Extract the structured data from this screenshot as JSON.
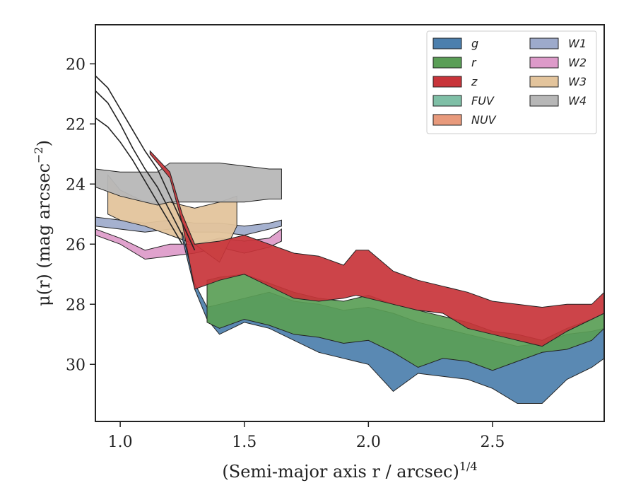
{
  "chart_data": {
    "type": "area",
    "xlabel": "(Semi-major axis r / arcsec)",
    "xlabel_sup": "1/4",
    "ylabel": "μ(r) (mag arcsec",
    "ylabel_sup": "−2",
    "ylabel_tail": ")",
    "xlim": [
      0.9,
      2.95
    ],
    "ylim": [
      31.9,
      18.7
    ],
    "y_inverted": true,
    "x_ticks": [
      1.0,
      1.5,
      2.0,
      2.5
    ],
    "x_tick_labels": [
      "1.0",
      "1.5",
      "2.0",
      "2.5"
    ],
    "y_ticks": [
      20,
      22,
      24,
      26,
      28,
      30
    ],
    "y_tick_labels": [
      "20",
      "22",
      "24",
      "26",
      "28",
      "30"
    ],
    "grid": false,
    "legend_position": "top-right",
    "legend_columns": 2,
    "series": [
      {
        "name": "g",
        "color": "#4c7fad",
        "upper": [
          [
            1.25,
            25.6
          ],
          [
            1.3,
            27.3
          ],
          [
            1.35,
            28.1
          ],
          [
            1.4,
            28.0
          ],
          [
            1.5,
            27.8
          ],
          [
            1.6,
            27.6
          ],
          [
            1.7,
            27.9
          ],
          [
            1.8,
            28.0
          ],
          [
            1.9,
            28.2
          ],
          [
            2.0,
            28.1
          ],
          [
            2.1,
            28.3
          ],
          [
            2.2,
            28.6
          ],
          [
            2.3,
            28.8
          ],
          [
            2.4,
            29.0
          ],
          [
            2.5,
            29.2
          ],
          [
            2.6,
            29.4
          ],
          [
            2.7,
            29.3
          ],
          [
            2.8,
            29.0
          ],
          [
            2.9,
            28.9
          ],
          [
            2.95,
            28.8
          ]
        ],
        "lower": [
          [
            1.25,
            25.8
          ],
          [
            1.3,
            27.5
          ],
          [
            1.35,
            28.5
          ],
          [
            1.4,
            29.0
          ],
          [
            1.5,
            28.6
          ],
          [
            1.6,
            28.8
          ],
          [
            1.7,
            29.2
          ],
          [
            1.8,
            29.6
          ],
          [
            1.9,
            29.8
          ],
          [
            2.0,
            30.0
          ],
          [
            2.1,
            30.9
          ],
          [
            2.2,
            30.3
          ],
          [
            2.3,
            30.4
          ],
          [
            2.4,
            30.5
          ],
          [
            2.5,
            30.8
          ],
          [
            2.6,
            31.3
          ],
          [
            2.7,
            31.3
          ],
          [
            2.8,
            30.5
          ],
          [
            2.9,
            30.1
          ],
          [
            2.95,
            29.8
          ]
        ]
      },
      {
        "name": "r",
        "color": "#5a9e56",
        "upper": [
          [
            1.35,
            27.2
          ],
          [
            1.4,
            27.1
          ],
          [
            1.5,
            27.0
          ],
          [
            1.6,
            27.3
          ],
          [
            1.7,
            27.6
          ],
          [
            1.8,
            27.8
          ],
          [
            1.9,
            27.9
          ],
          [
            2.0,
            27.7
          ],
          [
            2.1,
            28.0
          ],
          [
            2.2,
            28.2
          ],
          [
            2.3,
            28.4
          ],
          [
            2.4,
            28.6
          ],
          [
            2.5,
            28.9
          ],
          [
            2.6,
            29.0
          ],
          [
            2.7,
            29.2
          ],
          [
            2.8,
            28.8
          ],
          [
            2.9,
            28.5
          ],
          [
            2.95,
            28.3
          ]
        ],
        "lower": [
          [
            1.35,
            28.6
          ],
          [
            1.4,
            28.8
          ],
          [
            1.5,
            28.5
          ],
          [
            1.6,
            28.7
          ],
          [
            1.7,
            29.0
          ],
          [
            1.8,
            29.1
          ],
          [
            1.9,
            29.3
          ],
          [
            2.0,
            29.2
          ],
          [
            2.1,
            29.6
          ],
          [
            2.2,
            30.1
          ],
          [
            2.3,
            29.8
          ],
          [
            2.4,
            29.9
          ],
          [
            2.5,
            30.2
          ],
          [
            2.6,
            29.9
          ],
          [
            2.7,
            29.6
          ],
          [
            2.8,
            29.5
          ],
          [
            2.9,
            29.2
          ],
          [
            2.95,
            28.8
          ]
        ]
      },
      {
        "name": "z",
        "color": "#c8343a",
        "upper": [
          [
            1.12,
            22.9
          ],
          [
            1.2,
            23.6
          ],
          [
            1.25,
            25.0
          ],
          [
            1.3,
            26.0
          ],
          [
            1.4,
            25.9
          ],
          [
            1.5,
            25.7
          ],
          [
            1.6,
            26.0
          ],
          [
            1.7,
            26.3
          ],
          [
            1.8,
            26.4
          ],
          [
            1.9,
            26.7
          ],
          [
            1.95,
            26.2
          ],
          [
            2.0,
            26.2
          ],
          [
            2.1,
            26.9
          ],
          [
            2.2,
            27.2
          ],
          [
            2.3,
            27.4
          ],
          [
            2.4,
            27.6
          ],
          [
            2.5,
            27.9
          ],
          [
            2.6,
            28.0
          ],
          [
            2.7,
            28.1
          ],
          [
            2.8,
            28.0
          ],
          [
            2.9,
            28.0
          ],
          [
            2.95,
            27.6
          ]
        ],
        "lower": [
          [
            1.12,
            23.0
          ],
          [
            1.2,
            23.8
          ],
          [
            1.25,
            25.3
          ],
          [
            1.3,
            27.5
          ],
          [
            1.4,
            27.2
          ],
          [
            1.5,
            27.0
          ],
          [
            1.6,
            27.4
          ],
          [
            1.7,
            27.8
          ],
          [
            1.8,
            27.9
          ],
          [
            1.9,
            27.8
          ],
          [
            1.95,
            27.7
          ],
          [
            2.0,
            27.8
          ],
          [
            2.1,
            28.0
          ],
          [
            2.2,
            28.2
          ],
          [
            2.3,
            28.3
          ],
          [
            2.4,
            28.8
          ],
          [
            2.5,
            29.0
          ],
          [
            2.6,
            29.2
          ],
          [
            2.7,
            29.4
          ],
          [
            2.8,
            28.9
          ],
          [
            2.9,
            28.5
          ],
          [
            2.95,
            28.3
          ]
        ]
      },
      {
        "name": "FUV",
        "color": "#7fbfa6",
        "upper": [],
        "lower": []
      },
      {
        "name": "NUV",
        "color": "#e89a7c",
        "upper": [],
        "lower": []
      },
      {
        "name": "W1",
        "color": "#9daacb",
        "upper": [
          [
            0.9,
            25.1
          ],
          [
            1.0,
            25.2
          ],
          [
            1.1,
            25.3
          ],
          [
            1.2,
            25.2
          ],
          [
            1.3,
            25.3
          ],
          [
            1.4,
            25.3
          ],
          [
            1.5,
            25.4
          ],
          [
            1.6,
            25.3
          ],
          [
            1.65,
            25.2
          ]
        ],
        "lower": [
          [
            0.9,
            25.4
          ],
          [
            1.0,
            25.5
          ],
          [
            1.1,
            25.6
          ],
          [
            1.2,
            25.5
          ],
          [
            1.3,
            25.6
          ],
          [
            1.4,
            25.6
          ],
          [
            1.5,
            25.7
          ],
          [
            1.6,
            25.5
          ],
          [
            1.65,
            25.4
          ]
        ]
      },
      {
        "name": "W2",
        "color": "#dd9ac9",
        "upper": [
          [
            0.9,
            25.5
          ],
          [
            1.0,
            25.8
          ],
          [
            1.1,
            26.2
          ],
          [
            1.2,
            26.0
          ],
          [
            1.3,
            26.0
          ],
          [
            1.4,
            25.8
          ],
          [
            1.5,
            25.9
          ],
          [
            1.6,
            25.8
          ],
          [
            1.65,
            25.5
          ]
        ],
        "lower": [
          [
            0.9,
            25.7
          ],
          [
            1.0,
            26.0
          ],
          [
            1.1,
            26.5
          ],
          [
            1.2,
            26.4
          ],
          [
            1.3,
            26.3
          ],
          [
            1.4,
            26.1
          ],
          [
            1.5,
            26.3
          ],
          [
            1.6,
            26.1
          ],
          [
            1.65,
            25.9
          ]
        ]
      },
      {
        "name": "W3",
        "color": "#e3c49c",
        "upper": [
          [
            0.95,
            23.7
          ],
          [
            1.0,
            24.2
          ],
          [
            1.1,
            24.6
          ],
          [
            1.2,
            24.6
          ],
          [
            1.3,
            24.8
          ],
          [
            1.4,
            24.6
          ],
          [
            1.47,
            24.4
          ]
        ],
        "lower": [
          [
            0.95,
            25.0
          ],
          [
            1.0,
            25.2
          ],
          [
            1.1,
            25.4
          ],
          [
            1.2,
            25.7
          ],
          [
            1.3,
            26.0
          ],
          [
            1.4,
            26.6
          ],
          [
            1.47,
            25.4
          ]
        ]
      },
      {
        "name": "W4",
        "color": "#b7b7b7",
        "upper": [
          [
            0.9,
            23.5
          ],
          [
            1.0,
            23.6
          ],
          [
            1.1,
            23.6
          ],
          [
            1.15,
            23.6
          ],
          [
            1.2,
            23.3
          ],
          [
            1.3,
            23.3
          ],
          [
            1.4,
            23.3
          ],
          [
            1.5,
            23.4
          ],
          [
            1.6,
            23.5
          ],
          [
            1.65,
            23.5
          ]
        ],
        "lower": [
          [
            0.9,
            24.1
          ],
          [
            1.0,
            24.4
          ],
          [
            1.1,
            24.6
          ],
          [
            1.15,
            24.7
          ],
          [
            1.2,
            24.6
          ],
          [
            1.3,
            24.6
          ],
          [
            1.4,
            24.6
          ],
          [
            1.5,
            24.6
          ],
          [
            1.6,
            24.5
          ],
          [
            1.65,
            24.5
          ]
        ]
      }
    ],
    "lines": [
      {
        "color": "#222222",
        "points": [
          [
            0.9,
            20.4
          ],
          [
            0.95,
            20.8
          ],
          [
            1.0,
            21.5
          ],
          [
            1.05,
            22.2
          ],
          [
            1.1,
            22.9
          ],
          [
            1.15,
            23.5
          ],
          [
            1.2,
            24.4
          ],
          [
            1.25,
            25.3
          ],
          [
            1.3,
            26.2
          ]
        ]
      },
      {
        "color": "#222222",
        "points": [
          [
            0.9,
            20.9
          ],
          [
            0.95,
            21.3
          ],
          [
            1.0,
            22.0
          ],
          [
            1.05,
            22.8
          ],
          [
            1.1,
            23.5
          ],
          [
            1.15,
            24.1
          ],
          [
            1.2,
            24.9
          ],
          [
            1.25,
            25.7
          ]
        ]
      },
      {
        "color": "#222222",
        "points": [
          [
            0.9,
            21.8
          ],
          [
            0.95,
            22.1
          ],
          [
            1.0,
            22.6
          ],
          [
            1.05,
            23.2
          ],
          [
            1.1,
            23.9
          ],
          [
            1.15,
            24.6
          ],
          [
            1.2,
            25.3
          ],
          [
            1.25,
            26.0
          ]
        ]
      }
    ]
  }
}
